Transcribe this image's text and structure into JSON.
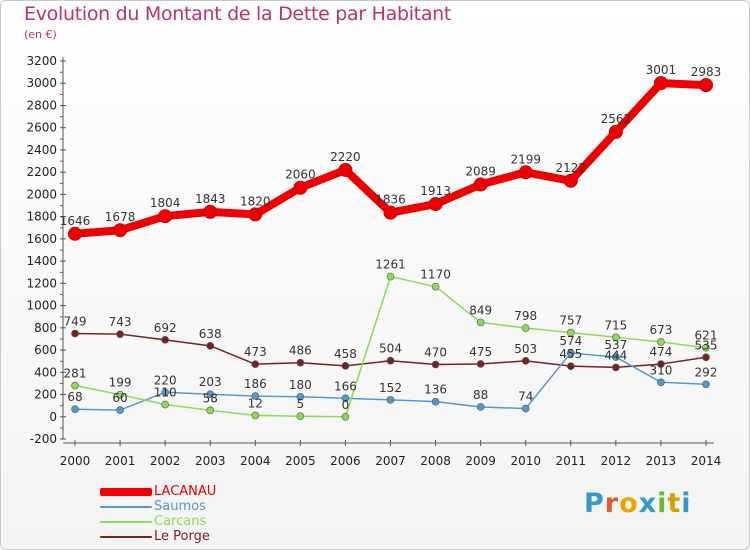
{
  "header": {
    "title": "Evolution du Montant de la Dette par Habitant",
    "unit": "(en €)"
  },
  "logo": {
    "text": "Proxiti",
    "colors": [
      "#3399cc",
      "#e05a2a",
      "#f0a400",
      "#3399cc",
      "#66bb33",
      "#d4a000",
      "#3399cc"
    ]
  },
  "chart_data": {
    "type": "line",
    "title": "Evolution du Montant de la Dette par Habitant",
    "subtitle": "(en €)",
    "xlabel": "",
    "ylabel": "",
    "x": [
      "2000",
      "2001",
      "2002",
      "2003",
      "2004",
      "2005",
      "2006",
      "2007",
      "2008",
      "2009",
      "2010",
      "2011",
      "2012",
      "2013",
      "2014"
    ],
    "ylim": [
      -200,
      3200
    ],
    "yticks": [
      -200,
      0,
      200,
      400,
      600,
      800,
      1000,
      1200,
      1400,
      1600,
      1800,
      2000,
      2200,
      2400,
      2600,
      2800,
      3000,
      3200
    ],
    "grid": false,
    "legend": "bottom-left",
    "series": [
      {
        "name": "LACANAU",
        "color": "#ee0000",
        "values": [
          1646,
          1678,
          1804,
          1843,
          1820,
          2060,
          2220,
          1836,
          1913,
          2089,
          2199,
          2122,
          2562,
          3001,
          2983
        ],
        "labels": [
          "1646",
          "1678",
          "1804",
          "1843",
          "1820",
          "2060",
          "2220",
          "1836",
          "1913",
          "2089",
          "2199",
          "2122",
          "2562",
          "3001",
          "2983"
        ]
      },
      {
        "name": "Saumos",
        "color": "#5599cc",
        "values": [
          68,
          60,
          220,
          203,
          186,
          180,
          166,
          152,
          136,
          88,
          74,
          574,
          537,
          310,
          292
        ],
        "labels": [
          "68",
          "60",
          "220",
          "203",
          "186",
          "180",
          "166",
          "152",
          "136",
          "88",
          "74",
          "574",
          "537",
          "310",
          "292"
        ]
      },
      {
        "name": "Carcans",
        "color": "#88dd55",
        "values": [
          281,
          199,
          110,
          58,
          12,
          5,
          0,
          1261,
          1170,
          849,
          798,
          757,
          715,
          673,
          621
        ],
        "labels": [
          "281",
          "199",
          "110",
          "58",
          "12",
          "5",
          "0",
          "1261",
          "1170",
          "849",
          "798",
          "757",
          "715",
          "673",
          "621"
        ]
      },
      {
        "name": "Le Porge",
        "color": "#772222",
        "values": [
          749,
          743,
          692,
          638,
          473,
          486,
          458,
          504,
          470,
          475,
          503,
          455,
          444,
          474,
          535
        ],
        "labels": [
          "749",
          "743",
          "692",
          "638",
          "473",
          "486",
          "458",
          "504",
          "470",
          "475",
          "503",
          "455",
          "444",
          "474",
          "535"
        ]
      }
    ]
  }
}
